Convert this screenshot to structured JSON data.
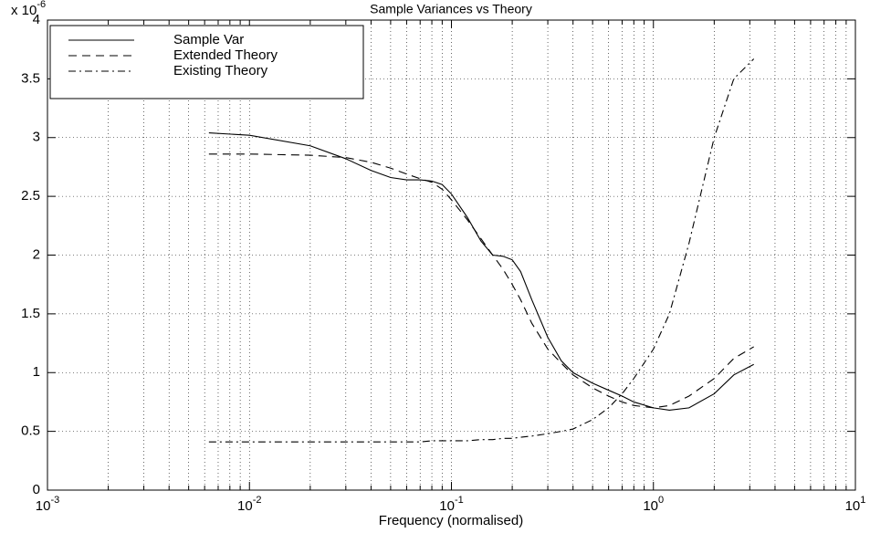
{
  "chart_data": {
    "type": "line",
    "title": "Sample Variances vs Theory",
    "x_label": "Frequency (normalised)",
    "y_multiplier": "x 10",
    "y_multiplier_exponent": "-6",
    "log_x": true,
    "grid": true,
    "legend": "upper left",
    "xlim": [
      0.001,
      10
    ],
    "ylim": [
      0,
      4
    ],
    "xticks": [
      {
        "value": 0.001,
        "label": "10^-3"
      },
      {
        "value": 0.01,
        "label": "10^-2"
      },
      {
        "value": 0.1,
        "label": "10^-1"
      },
      {
        "value": 1,
        "label": "10^0"
      },
      {
        "value": 10,
        "label": "10^1"
      }
    ],
    "xminorticks": [
      0.002,
      0.003,
      0.004,
      0.005,
      0.006,
      0.007,
      0.008,
      0.009,
      0.02,
      0.03,
      0.04,
      0.05,
      0.06,
      0.07,
      0.08,
      0.09,
      0.2,
      0.3,
      0.4,
      0.5,
      0.6,
      0.7,
      0.8,
      0.9,
      2,
      3,
      4,
      5,
      6,
      7,
      8,
      9
    ],
    "yticks": [
      0,
      0.5,
      1,
      1.5,
      2,
      2.5,
      3,
      3.5,
      4
    ],
    "x": [
      0.0063,
      0.01,
      0.02,
      0.03,
      0.04,
      0.05,
      0.06,
      0.07,
      0.08,
      0.09,
      0.1,
      0.12,
      0.14,
      0.16,
      0.18,
      0.2,
      0.22,
      0.25,
      0.3,
      0.35,
      0.4,
      0.5,
      0.6,
      0.7,
      0.8,
      1,
      1.2,
      1.5,
      2,
      2.5,
      3.14
    ],
    "series": [
      {
        "name": "Sample Var",
        "color": "#000000",
        "dash": "none",
        "values": [
          3.04,
          3.02,
          2.93,
          2.82,
          2.72,
          2.66,
          2.64,
          2.64,
          2.63,
          2.6,
          2.52,
          2.32,
          2.12,
          2.0,
          1.99,
          1.96,
          1.86,
          1.62,
          1.3,
          1.1,
          1.0,
          0.91,
          0.85,
          0.8,
          0.75,
          0.7,
          0.68,
          0.7,
          0.82,
          0.98,
          1.07
        ]
      },
      {
        "name": "Extended Theory",
        "color": "#000000",
        "dash": "9 6",
        "values": [
          2.86,
          2.86,
          2.85,
          2.83,
          2.79,
          2.74,
          2.69,
          2.65,
          2.62,
          2.56,
          2.47,
          2.3,
          2.14,
          2.0,
          1.88,
          1.75,
          1.62,
          1.42,
          1.2,
          1.08,
          0.98,
          0.87,
          0.8,
          0.75,
          0.72,
          0.7,
          0.72,
          0.8,
          0.95,
          1.12,
          1.22
        ]
      },
      {
        "name": "Existing Theory",
        "color": "#000000",
        "dash": "8 4 2 4",
        "values": [
          0.41,
          0.41,
          0.41,
          0.41,
          0.41,
          0.41,
          0.41,
          0.41,
          0.42,
          0.42,
          0.42,
          0.42,
          0.43,
          0.43,
          0.44,
          0.44,
          0.45,
          0.46,
          0.48,
          0.5,
          0.52,
          0.6,
          0.7,
          0.82,
          0.95,
          1.2,
          1.5,
          2.1,
          3.0,
          3.5,
          3.67
        ]
      }
    ]
  }
}
